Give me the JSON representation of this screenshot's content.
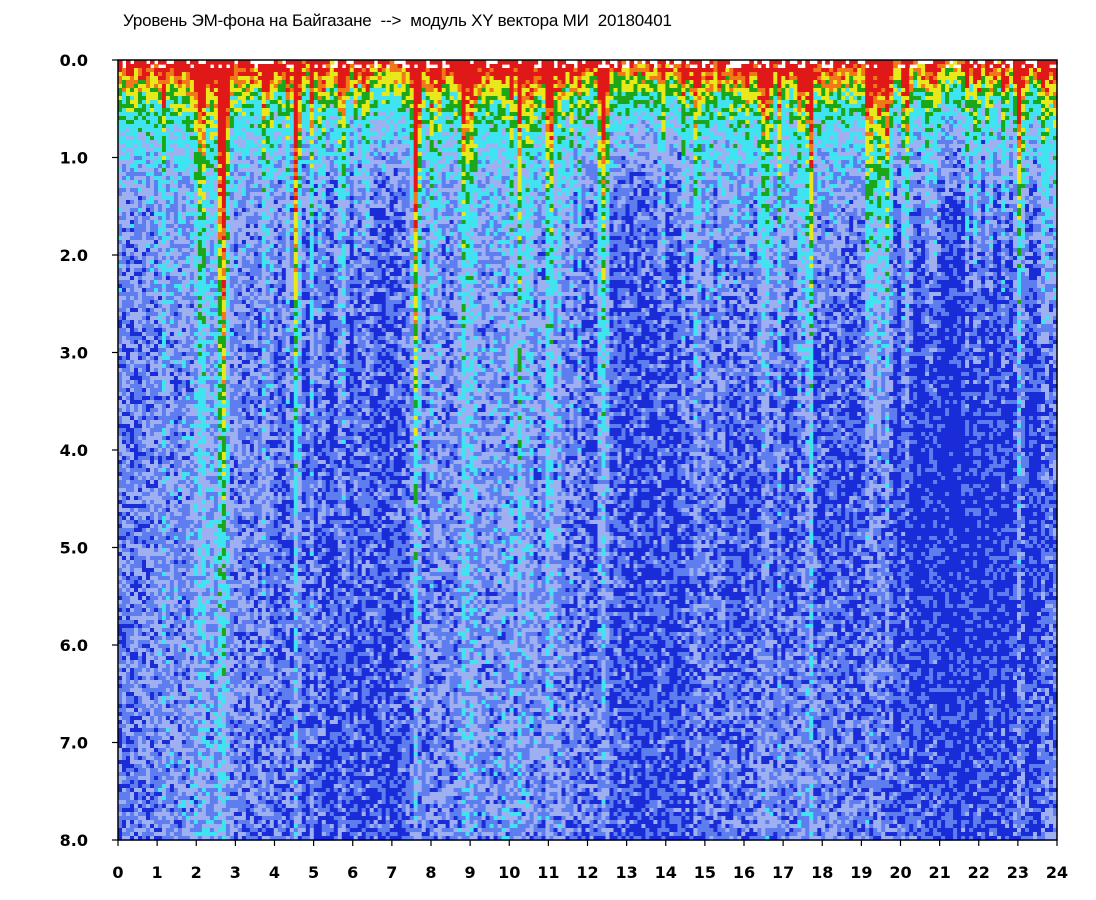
{
  "chart_data": {
    "type": "heatmap",
    "title": "Уровень ЭМ-фона на Байгазане  -->  модуль XY вектора МИ  20180401",
    "xlabel": "",
    "ylabel": "",
    "xlim": [
      0,
      24
    ],
    "ylim": [
      0.0,
      8.0
    ],
    "y_inverted": true,
    "x_ticks": [
      "0",
      "1",
      "2",
      "3",
      "4",
      "5",
      "6",
      "7",
      "8",
      "9",
      "10",
      "11",
      "12",
      "13",
      "14",
      "15",
      "16",
      "17",
      "18",
      "19",
      "20",
      "21",
      "22",
      "23",
      "24"
    ],
    "y_ticks": [
      "0.0",
      "1.0",
      "2.0",
      "3.0",
      "4.0",
      "5.0",
      "6.0",
      "7.0",
      "8.0"
    ],
    "colormap": [
      "#1a2bd8",
      "#5e7ef0",
      "#9fb0f2",
      "#40e3f0",
      "#1aa81a",
      "#e8e81a",
      "#f07818",
      "#e01818"
    ],
    "grid": false,
    "legend": "none"
  }
}
